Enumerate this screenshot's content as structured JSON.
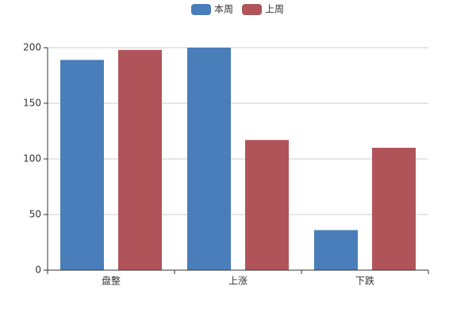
{
  "chart_data": {
    "type": "bar",
    "categories": [
      "盘整",
      "上涨",
      "下跌"
    ],
    "series": [
      {
        "name": "本周",
        "color": "#4a7ebb",
        "values": [
          189,
          200,
          36
        ]
      },
      {
        "name": "上周",
        "color": "#b0545a",
        "values": [
          198,
          117,
          110
        ]
      }
    ],
    "ylim": [
      0,
      200
    ],
    "yticks": [
      0,
      50,
      100,
      150,
      200
    ],
    "grid": true,
    "legend": "top"
  }
}
